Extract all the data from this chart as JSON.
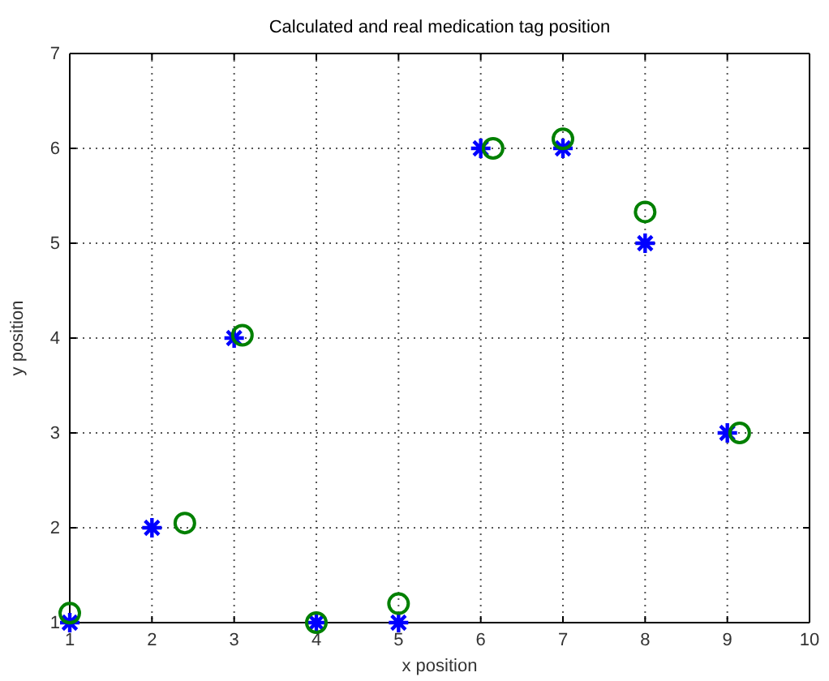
{
  "chart_data": {
    "type": "scatter",
    "title": "Calculated and real medication tag position",
    "xlabel": "x position",
    "ylabel": "y position",
    "xlim": [
      1,
      10
    ],
    "ylim": [
      1,
      7
    ],
    "xticks": [
      1,
      2,
      3,
      4,
      5,
      6,
      7,
      8,
      9,
      10
    ],
    "yticks": [
      1,
      2,
      3,
      4,
      5,
      6,
      7
    ],
    "grid": true,
    "series": [
      {
        "color": "#0000ff",
        "marker": "cross",
        "x": [
          1,
          2,
          3,
          4,
          5,
          6,
          7,
          8,
          9
        ],
        "values": [
          1,
          2,
          4,
          1,
          1,
          6,
          6,
          5,
          3
        ]
      },
      {
        "color": "#008000",
        "marker": "circle",
        "x": [
          1,
          2.4,
          3.1,
          4,
          5,
          6.15,
          7,
          8,
          9.15
        ],
        "values": [
          1.1,
          2.05,
          4.03,
          1,
          1.2,
          6,
          6.1,
          5.33,
          3
        ]
      }
    ]
  }
}
